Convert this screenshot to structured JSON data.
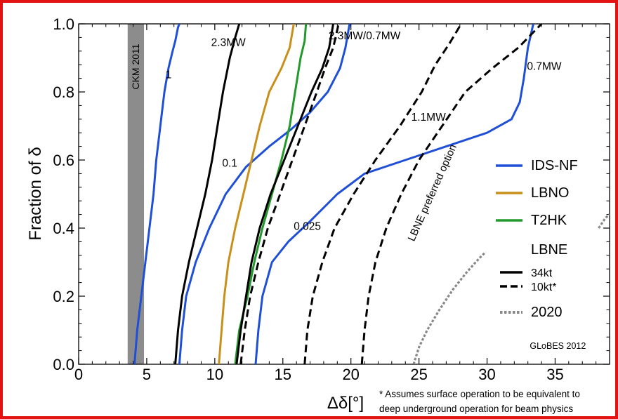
{
  "chart_data": {
    "type": "line",
    "title": "",
    "xlabel": "Δδ[°]",
    "ylabel": "Fraction of δ",
    "xlim": [
      0,
      39
    ],
    "ylim": [
      0,
      1
    ],
    "x_ticks": [
      0,
      5,
      10,
      15,
      20,
      25,
      30,
      35
    ],
    "y_ticks": [
      0.0,
      0.2,
      0.4,
      0.6,
      0.8,
      1.0
    ],
    "x_tick_labels": [
      "0",
      "5",
      "10",
      "15",
      "20",
      "25",
      "30",
      "35"
    ],
    "y_tick_labels": [
      "0.0",
      "0.2",
      "0.4",
      "0.6",
      "0.8",
      "1.0"
    ],
    "band": {
      "label": "CKM 2011",
      "x_range": [
        3.6,
        4.8
      ],
      "color": "#8c8c8c"
    },
    "colors": {
      "ids_nf": "#1f4fd6",
      "lbno": "#c8901a",
      "t2hk": "#22992a",
      "lbne": "#000000",
      "future_2020": "#888888"
    },
    "legend": {
      "position": "right",
      "entries": [
        {
          "label": "IDS-NF",
          "color": "#1f4fd6",
          "style": "solid"
        },
        {
          "label": "LBNO",
          "color": "#c8901a",
          "style": "solid"
        },
        {
          "label": "T2HK",
          "color": "#22992a",
          "style": "solid"
        },
        {
          "label": "LBNE",
          "color": "",
          "style": "none"
        },
        {
          "label": "34kt",
          "color": "#000000",
          "style": "solid",
          "small": true
        },
        {
          "label": "10kt*",
          "color": "#000000",
          "style": "dashed",
          "small": true
        },
        {
          "label": "2020",
          "color": "#888888",
          "style": "dotted"
        }
      ]
    },
    "series": [
      {
        "group": "IDS-NF",
        "label": "1",
        "color": "#1f4fd6",
        "dash": "solid",
        "points": [
          [
            4.1,
            0
          ],
          [
            4.3,
            0.1
          ],
          [
            4.6,
            0.2
          ],
          [
            4.9,
            0.3
          ],
          [
            5.2,
            0.4
          ],
          [
            5.5,
            0.5
          ],
          [
            5.7,
            0.6
          ],
          [
            6.0,
            0.7
          ],
          [
            6.3,
            0.8
          ],
          [
            6.6,
            0.87
          ],
          [
            6.9,
            0.92
          ],
          [
            7.1,
            0.95
          ],
          [
            7.3,
            0.99
          ],
          [
            7.4,
            1.0
          ]
        ]
      },
      {
        "group": "IDS-NF",
        "label": "0.1",
        "color": "#1f4fd6",
        "dash": "solid",
        "points": [
          [
            7.4,
            0
          ],
          [
            7.6,
            0.1
          ],
          [
            7.9,
            0.2
          ],
          [
            8.6,
            0.3
          ],
          [
            9.6,
            0.4
          ],
          [
            10.8,
            0.5
          ],
          [
            12.3,
            0.58
          ],
          [
            14.0,
            0.64
          ],
          [
            15.6,
            0.69
          ],
          [
            17.0,
            0.74
          ],
          [
            18.3,
            0.8
          ],
          [
            19.2,
            0.87
          ],
          [
            19.6,
            0.93
          ],
          [
            19.9,
            1.0
          ]
        ]
      },
      {
        "group": "IDS-NF",
        "label": "0.025",
        "color": "#1f4fd6",
        "dash": "solid",
        "points": [
          [
            13.0,
            0
          ],
          [
            13.2,
            0.1
          ],
          [
            13.5,
            0.2
          ],
          [
            14.2,
            0.3
          ],
          [
            15.4,
            0.36
          ],
          [
            17.0,
            0.42
          ],
          [
            19.0,
            0.5
          ],
          [
            21.0,
            0.56
          ],
          [
            24.0,
            0.6
          ],
          [
            27.0,
            0.64
          ],
          [
            30.0,
            0.68
          ],
          [
            31.8,
            0.72
          ],
          [
            32.4,
            0.77
          ],
          [
            32.7,
            0.84
          ],
          [
            33.0,
            0.93
          ],
          [
            33.4,
            1.0
          ]
        ]
      },
      {
        "group": "LBNO",
        "label": "",
        "color": "#c8901a",
        "dash": "solid",
        "points": [
          [
            10.3,
            0
          ],
          [
            10.5,
            0.1
          ],
          [
            10.7,
            0.2
          ],
          [
            11.0,
            0.3
          ],
          [
            11.5,
            0.4
          ],
          [
            12.1,
            0.5
          ],
          [
            12.7,
            0.6
          ],
          [
            13.3,
            0.7
          ],
          [
            14.0,
            0.8
          ],
          [
            14.9,
            0.87
          ],
          [
            15.5,
            0.93
          ],
          [
            15.8,
            1.0
          ]
        ]
      },
      {
        "group": "T2HK",
        "label": "",
        "color": "#22992a",
        "dash": "solid",
        "points": [
          [
            11.5,
            0
          ],
          [
            11.8,
            0.1
          ],
          [
            12.4,
            0.2
          ],
          [
            12.9,
            0.3
          ],
          [
            13.5,
            0.4
          ],
          [
            14.2,
            0.5
          ],
          [
            14.9,
            0.6
          ],
          [
            15.5,
            0.7
          ],
          [
            15.9,
            0.8
          ],
          [
            16.3,
            0.9
          ],
          [
            16.6,
            0.95
          ],
          [
            16.7,
            1.0
          ]
        ]
      },
      {
        "group": "LBNE 34kt",
        "label": "2.3MW",
        "color": "#000000",
        "dash": "solid",
        "points": [
          [
            7.1,
            0
          ],
          [
            7.3,
            0.1
          ],
          [
            7.6,
            0.2
          ],
          [
            8.1,
            0.3
          ],
          [
            8.7,
            0.4
          ],
          [
            9.3,
            0.5
          ],
          [
            9.8,
            0.6
          ],
          [
            10.2,
            0.7
          ],
          [
            10.6,
            0.8
          ],
          [
            11.1,
            0.9
          ],
          [
            11.5,
            0.96
          ],
          [
            11.8,
            1.0
          ]
        ]
      },
      {
        "group": "LBNE 34kt",
        "label": "2.3MW/0.7MW",
        "color": "#000000",
        "dash": "solid",
        "points": [
          [
            11.6,
            0
          ],
          [
            11.9,
            0.1
          ],
          [
            12.3,
            0.2
          ],
          [
            12.7,
            0.3
          ],
          [
            13.3,
            0.4
          ],
          [
            14.1,
            0.5
          ],
          [
            15.1,
            0.6
          ],
          [
            16.1,
            0.7
          ],
          [
            17.1,
            0.8
          ],
          [
            17.9,
            0.87
          ],
          [
            18.4,
            0.93
          ],
          [
            18.7,
            1.0
          ]
        ]
      },
      {
        "group": "LBNE 10kt*",
        "label": "",
        "color": "#000000",
        "dash": "dashed",
        "points": [
          [
            11.9,
            0
          ],
          [
            12.2,
            0.1
          ],
          [
            12.6,
            0.2
          ],
          [
            13.2,
            0.3
          ],
          [
            13.9,
            0.4
          ],
          [
            14.8,
            0.5
          ],
          [
            15.7,
            0.6
          ],
          [
            16.6,
            0.7
          ],
          [
            17.5,
            0.8
          ],
          [
            18.1,
            0.87
          ],
          [
            18.7,
            0.93
          ],
          [
            19.1,
            1.0
          ]
        ]
      },
      {
        "group": "LBNE 10kt*",
        "label": "1.1MW",
        "color": "#000000",
        "dash": "dashed",
        "points": [
          [
            16.6,
            0
          ],
          [
            16.8,
            0.1
          ],
          [
            17.2,
            0.2
          ],
          [
            17.9,
            0.3
          ],
          [
            18.8,
            0.4
          ],
          [
            20.2,
            0.5
          ],
          [
            21.8,
            0.6
          ],
          [
            23.6,
            0.7
          ],
          [
            25.2,
            0.8
          ],
          [
            26.2,
            0.88
          ],
          [
            27.2,
            0.94
          ],
          [
            28.1,
            1.0
          ]
        ]
      },
      {
        "group": "LBNE 10kt*",
        "label": "0.7MW",
        "color": "#000000",
        "dash": "dashed",
        "points": [
          [
            20.8,
            0
          ],
          [
            21.0,
            0.1
          ],
          [
            21.3,
            0.2
          ],
          [
            21.8,
            0.3
          ],
          [
            22.6,
            0.4
          ],
          [
            23.7,
            0.5
          ],
          [
            25.0,
            0.6
          ],
          [
            26.7,
            0.7
          ],
          [
            28.4,
            0.8
          ],
          [
            30.4,
            0.87
          ],
          [
            32.3,
            0.93
          ],
          [
            34.0,
            1.0
          ]
        ]
      },
      {
        "group": "2020",
        "label": "",
        "color": "#888888",
        "dash": "dotted",
        "points": [
          [
            24.6,
            0
          ],
          [
            25.0,
            0.05
          ],
          [
            25.6,
            0.1
          ],
          [
            26.5,
            0.16
          ],
          [
            27.5,
            0.22
          ],
          [
            28.5,
            0.27
          ],
          [
            29.4,
            0.31
          ],
          [
            29.9,
            0.33
          ]
        ]
      },
      {
        "group": "2020",
        "label": "",
        "color": "#888888",
        "dash": "dotted",
        "points": [
          [
            38.2,
            0.4
          ],
          [
            38.7,
            0.43
          ],
          [
            39.0,
            0.44
          ]
        ]
      }
    ],
    "annotations": [
      {
        "text": "1",
        "x": 6.6,
        "y": 0.84,
        "color": "#1f4fd6",
        "rotate": 0
      },
      {
        "text": "2.3MW",
        "x": 11.0,
        "y": 0.935,
        "color": "#000000",
        "rotate": 0
      },
      {
        "text": "0.1",
        "x": 11.1,
        "y": 0.58,
        "color": "#1f4fd6",
        "rotate": 0
      },
      {
        "text": "2.3MW/0.7MW",
        "x": 21.0,
        "y": 0.955,
        "color": "#000000",
        "rotate": 0
      },
      {
        "text": "0.025",
        "x": 16.8,
        "y": 0.395,
        "color": "#1f4fd6",
        "rotate": 0
      },
      {
        "text": "1.1MW",
        "x": 25.7,
        "y": 0.715,
        "color": "#000000",
        "rotate": 0
      },
      {
        "text": "0.7MW",
        "x": 34.2,
        "y": 0.865,
        "color": "#000000",
        "rotate": 0
      },
      {
        "text": "LBNE preferred option",
        "x": 26.2,
        "y": 0.5,
        "color": "#000000",
        "rotate": -66
      },
      {
        "text": "GLoBES 2012",
        "x": 35.2,
        "y": 0.045,
        "color": "#000000",
        "rotate": 0
      }
    ],
    "footnote": [
      "* Assumes surface operation to be equivalent to",
      "deep underground operation for beam physics"
    ]
  }
}
